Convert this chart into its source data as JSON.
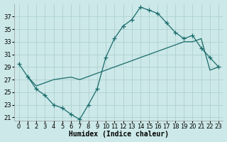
{
  "xlabel": "Humidex (Indice chaleur)",
  "bg_color": "#cce8e8",
  "grid_color": "#aacccc",
  "line_color": "#1a6b6b",
  "tick_fontsize": 6,
  "label_fontsize": 7,
  "ylim": [
    20.5,
    39
  ],
  "yticks": [
    21,
    23,
    25,
    27,
    29,
    31,
    33,
    35,
    37
  ],
  "xlim": [
    -0.5,
    23.5
  ],
  "xticks": [
    0,
    1,
    2,
    3,
    4,
    5,
    6,
    7,
    8,
    9,
    10,
    11,
    12,
    13,
    14,
    15,
    16,
    17,
    18,
    19,
    20,
    21,
    22,
    23
  ],
  "curve1_x": [
    0,
    1,
    2,
    3,
    4,
    5,
    6,
    7,
    8,
    9,
    10,
    11,
    12,
    13,
    14,
    15,
    16,
    17,
    18,
    19,
    20,
    21,
    22,
    23
  ],
  "curve1_y": [
    29.5,
    27.5,
    25.5,
    24.5,
    23.0,
    22.5,
    21.5,
    20.7,
    23.0,
    25.5,
    30.5,
    33.5,
    35.5,
    36.5,
    38.5,
    38.0,
    37.5,
    36.0,
    34.5,
    33.5,
    34.0,
    32.0,
    30.5,
    29.0
  ],
  "curve2_x": [
    1,
    2,
    3,
    4,
    5,
    6,
    7,
    8,
    9,
    10,
    11,
    12,
    13,
    14,
    15,
    16,
    17,
    18,
    19,
    20,
    21,
    22,
    23
  ],
  "curve2_y": [
    27.5,
    26.0,
    26.5,
    27.0,
    27.2,
    27.4,
    27.0,
    27.5,
    28.0,
    28.5,
    29.0,
    29.5,
    30.0,
    30.5,
    31.0,
    31.5,
    32.0,
    32.5,
    33.0,
    33.0,
    33.5,
    28.5,
    29.0
  ]
}
